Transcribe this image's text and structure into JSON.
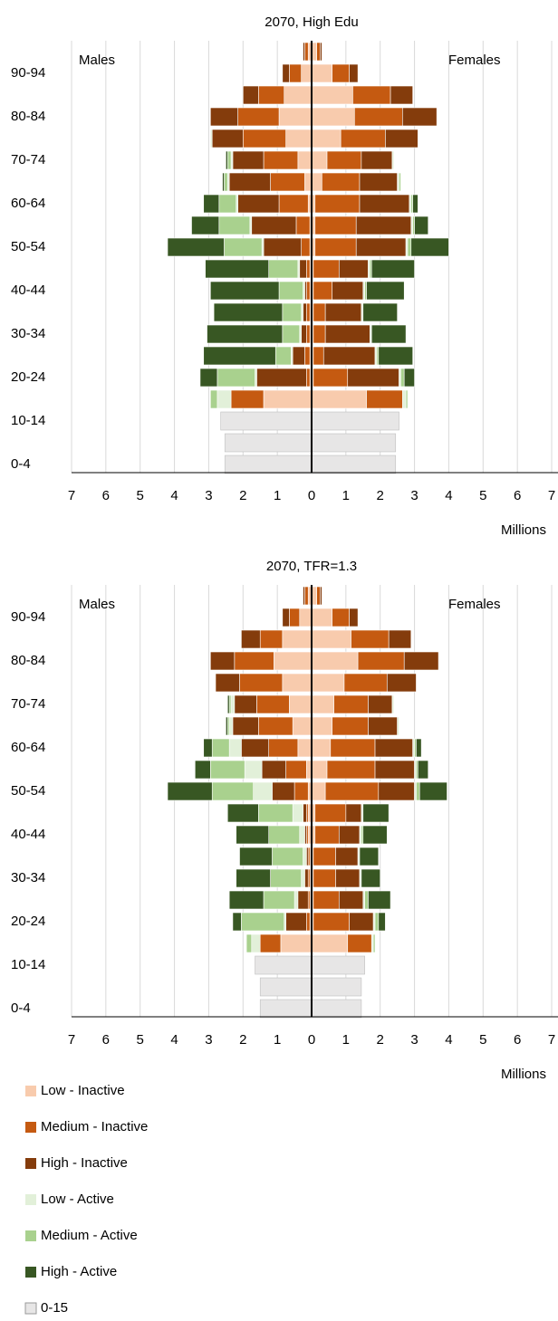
{
  "legend": [
    {
      "name": "Low - Inactive",
      "color": "#f8cbad"
    },
    {
      "name": "Medium - Inactive",
      "color": "#c55a11"
    },
    {
      "name": "High - Inactive",
      "color": "#843c0c"
    },
    {
      "name": "Low - Active",
      "color": "#e2f0d9"
    },
    {
      "name": "Medium - Active",
      "color": "#a9d18e"
    },
    {
      "name": "High - Active",
      "color": "#385723"
    },
    {
      "name": "0-15",
      "color": "#e7e6e6"
    }
  ],
  "chart_data": [
    {
      "type": "pyramid",
      "title": "2070, High Edu",
      "left_label": "Males",
      "right_label": "Females",
      "xlabel": "Millions",
      "categories": [
        "0-4",
        null,
        "10-14",
        null,
        "20-24",
        null,
        "30-34",
        null,
        "40-44",
        null,
        "50-54",
        null,
        "60-64",
        null,
        "70-74",
        null,
        "80-84",
        null,
        "90-94",
        null
      ],
      "xlim": [
        -7,
        7
      ],
      "xticks": [
        {
          "value": -7,
          "label": "7"
        },
        {
          "value": -6,
          "label": "6"
        },
        {
          "value": -5,
          "label": "5"
        },
        {
          "value": -4,
          "label": "4"
        },
        {
          "value": -3,
          "label": "3"
        },
        {
          "value": -2,
          "label": "2"
        },
        {
          "value": -1,
          "label": "1"
        },
        0,
        1,
        2,
        3,
        4,
        5,
        6,
        7
      ],
      "grid": true,
      "series": [
        {
          "males": [
            0,
            0,
            0,
            -1.4,
            -0.05,
            -0.05,
            -0.05,
            -0.05,
            -0.05,
            -0.05,
            -0.05,
            -0.05,
            -0.1,
            -0.2,
            -0.4,
            -0.75,
            -0.95,
            -0.8,
            -0.3,
            -0.1
          ],
          "females": [
            0,
            0,
            0,
            1.6,
            0.05,
            0.05,
            0.05,
            0.05,
            0.05,
            0.05,
            0.1,
            0.1,
            0.1,
            0.3,
            0.45,
            0.85,
            1.25,
            1.2,
            0.6,
            0.15
          ]
        },
        {
          "males": [
            0,
            0,
            0,
            -0.95,
            -0.1,
            -0.15,
            -0.1,
            -0.1,
            -0.1,
            -0.1,
            -0.25,
            -0.4,
            -0.85,
            -1.0,
            -1.0,
            -1.25,
            -1.2,
            -0.75,
            -0.35,
            -0.1
          ],
          "females": [
            0,
            0,
            0,
            1.05,
            1.0,
            0.3,
            0.35,
            0.35,
            0.55,
            0.75,
            1.2,
            1.2,
            1.3,
            1.1,
            1.0,
            1.3,
            1.4,
            1.1,
            0.5,
            0.1
          ]
        },
        {
          "males": [
            0,
            0,
            0,
            0,
            -1.45,
            -0.35,
            -0.15,
            -0.1,
            -0.05,
            -0.2,
            -1.1,
            -1.3,
            -1.2,
            -1.2,
            -0.9,
            -0.9,
            -0.8,
            -0.45,
            -0.2,
            -0.05
          ],
          "females": [
            0,
            0,
            0,
            0,
            1.5,
            1.5,
            1.3,
            1.05,
            0.9,
            0.85,
            1.45,
            1.6,
            1.45,
            1.1,
            0.9,
            0.95,
            1.0,
            0.65,
            0.25,
            0.05
          ]
        },
        {
          "males": [
            0,
            0,
            0,
            -0.4,
            -0.05,
            -0.05,
            -0.05,
            -0.05,
            -0.05,
            -0.05,
            -0.05,
            -0.05,
            -0.05,
            -0.05,
            -0.05,
            -0.05,
            0,
            0,
            0,
            0
          ],
          "females": [
            0,
            0,
            0,
            0.1,
            0.05,
            0.05,
            0.05,
            0.05,
            0.05,
            0.05,
            0.05,
            0.05,
            0.05,
            0.05,
            0.05,
            0,
            0,
            0,
            0,
            0
          ]
        },
        {
          "males": [
            0,
            0,
            0,
            -0.2,
            -1.1,
            -0.45,
            -0.5,
            -0.55,
            -0.7,
            -0.85,
            -1.1,
            -0.9,
            -0.5,
            -0.1,
            -0.1,
            0,
            0,
            0,
            0,
            0
          ],
          "females": [
            0,
            0,
            0,
            0.05,
            0.1,
            0.05,
            0,
            0,
            0.05,
            0.05,
            0.1,
            0.05,
            0.05,
            0.05,
            0,
            0,
            0,
            0,
            0,
            0
          ]
        },
        {
          "males": [
            0,
            0,
            0,
            0,
            -0.5,
            -2.1,
            -2.2,
            -2.0,
            -2.0,
            -1.85,
            -1.65,
            -0.8,
            -0.45,
            -0.05,
            -0.05,
            0,
            0,
            0,
            0,
            0
          ],
          "females": [
            0,
            0,
            0,
            0,
            0.3,
            1.0,
            1.0,
            1.0,
            1.1,
            1.25,
            1.1,
            0.4,
            0.15,
            0,
            0,
            0,
            0,
            0,
            0,
            0
          ]
        },
        {
          "males": [
            -2.53,
            -2.53,
            -2.65,
            0,
            0,
            0,
            0,
            0,
            0,
            0,
            0,
            0,
            0,
            0,
            0,
            0,
            0,
            0,
            0,
            0
          ],
          "females": [
            2.45,
            2.45,
            2.55,
            0,
            0,
            0,
            0,
            0,
            0,
            0,
            0,
            0,
            0,
            0,
            0,
            0,
            0,
            0,
            0,
            0
          ]
        }
      ]
    },
    {
      "type": "pyramid",
      "title": "2070, TFR=1.3",
      "left_label": "Males",
      "right_label": "Females",
      "xlabel": "Millions",
      "categories": [
        "0-4",
        null,
        "10-14",
        null,
        "20-24",
        null,
        "30-34",
        null,
        "40-44",
        null,
        "50-54",
        null,
        "60-64",
        null,
        "70-74",
        null,
        "80-84",
        null,
        "90-94",
        null
      ],
      "xlim": [
        -7,
        7
      ],
      "xticks": [
        {
          "value": -7,
          "label": "7"
        },
        {
          "value": -6,
          "label": "6"
        },
        {
          "value": -5,
          "label": "5"
        },
        {
          "value": -4,
          "label": "4"
        },
        {
          "value": -3,
          "label": "3"
        },
        {
          "value": -2,
          "label": "2"
        },
        {
          "value": -1,
          "label": "1"
        },
        0,
        1,
        2,
        3,
        4,
        5,
        6,
        7
      ],
      "grid": true,
      "series": [
        {
          "males": [
            0,
            0,
            0,
            -0.9,
            -0.05,
            -0.05,
            -0.05,
            -0.05,
            -0.1,
            -0.1,
            -0.1,
            -0.15,
            -0.4,
            -0.55,
            -0.65,
            -0.85,
            -1.1,
            -0.85,
            -0.35,
            -0.1
          ],
          "females": [
            0,
            0,
            0,
            1.05,
            0.05,
            0.05,
            0.05,
            0.05,
            0.1,
            0.1,
            0.4,
            0.45,
            0.55,
            0.6,
            0.65,
            0.95,
            1.35,
            1.15,
            0.6,
            0.15
          ]
        },
        {
          "males": [
            0,
            0,
            0,
            -0.6,
            -0.1,
            -0.05,
            -0.05,
            -0.05,
            -0.05,
            -0.05,
            -0.4,
            -0.6,
            -0.85,
            -1.0,
            -0.95,
            -1.25,
            -1.15,
            -0.65,
            -0.3,
            -0.1
          ],
          "females": [
            0,
            0,
            0,
            0.7,
            1.05,
            0.75,
            0.65,
            0.65,
            0.7,
            0.9,
            1.55,
            1.4,
            1.3,
            1.05,
            1.0,
            1.25,
            1.35,
            1.1,
            0.5,
            0.1
          ]
        },
        {
          "males": [
            0,
            0,
            0,
            0,
            -0.6,
            -0.3,
            -0.1,
            -0.05,
            -0.05,
            -0.1,
            -0.65,
            -0.7,
            -0.8,
            -0.75,
            -0.65,
            -0.7,
            -0.7,
            -0.55,
            -0.2,
            -0.05
          ],
          "females": [
            0,
            0,
            0,
            0,
            0.7,
            0.7,
            0.7,
            0.65,
            0.6,
            0.45,
            1.05,
            1.15,
            1.1,
            0.85,
            0.7,
            0.85,
            1.0,
            0.65,
            0.25,
            0.05
          ]
        },
        {
          "males": [
            0,
            0,
            0,
            -0.25,
            -0.05,
            -0.1,
            -0.1,
            -0.1,
            -0.15,
            -0.3,
            -0.55,
            -0.5,
            -0.35,
            -0.1,
            -0.1,
            0,
            0,
            0,
            0,
            0
          ],
          "females": [
            0,
            0,
            0,
            0.05,
            0.05,
            0.05,
            0.05,
            0.05,
            0.05,
            0.05,
            0.05,
            0.05,
            0.05,
            0.05,
            0.05,
            0,
            0,
            0,
            0,
            0
          ]
        },
        {
          "males": [
            0,
            0,
            0,
            -0.15,
            -1.25,
            -0.9,
            -0.9,
            -0.9,
            -0.9,
            -1.0,
            -1.2,
            -1.0,
            -0.5,
            -0.05,
            -0.05,
            0,
            0,
            0,
            0,
            0
          ],
          "females": [
            0,
            0,
            0,
            0.05,
            0.1,
            0.1,
            0,
            0,
            0.05,
            0,
            0.1,
            0.05,
            0.05,
            0,
            0,
            0,
            0,
            0,
            0,
            0
          ]
        },
        {
          "males": [
            0,
            0,
            0,
            0,
            -0.25,
            -1.0,
            -1.0,
            -0.95,
            -0.95,
            -0.9,
            -1.3,
            -0.45,
            -0.25,
            -0.05,
            -0.05,
            0,
            0,
            0,
            0,
            0
          ],
          "females": [
            0,
            0,
            0,
            0,
            0.2,
            0.65,
            0.55,
            0.55,
            0.7,
            0.75,
            0.8,
            0.3,
            0.15,
            0,
            0,
            0,
            0,
            0,
            0,
            0
          ]
        },
        {
          "males": [
            -1.5,
            -1.5,
            -1.65,
            0,
            0,
            0,
            0,
            0,
            0,
            0,
            0,
            0,
            0,
            0,
            0,
            0,
            0,
            0,
            0,
            0
          ],
          "females": [
            1.45,
            1.45,
            1.55,
            0,
            0,
            0,
            0,
            0,
            0,
            0,
            0,
            0,
            0,
            0,
            0,
            0,
            0,
            0,
            0,
            0
          ]
        }
      ]
    }
  ]
}
